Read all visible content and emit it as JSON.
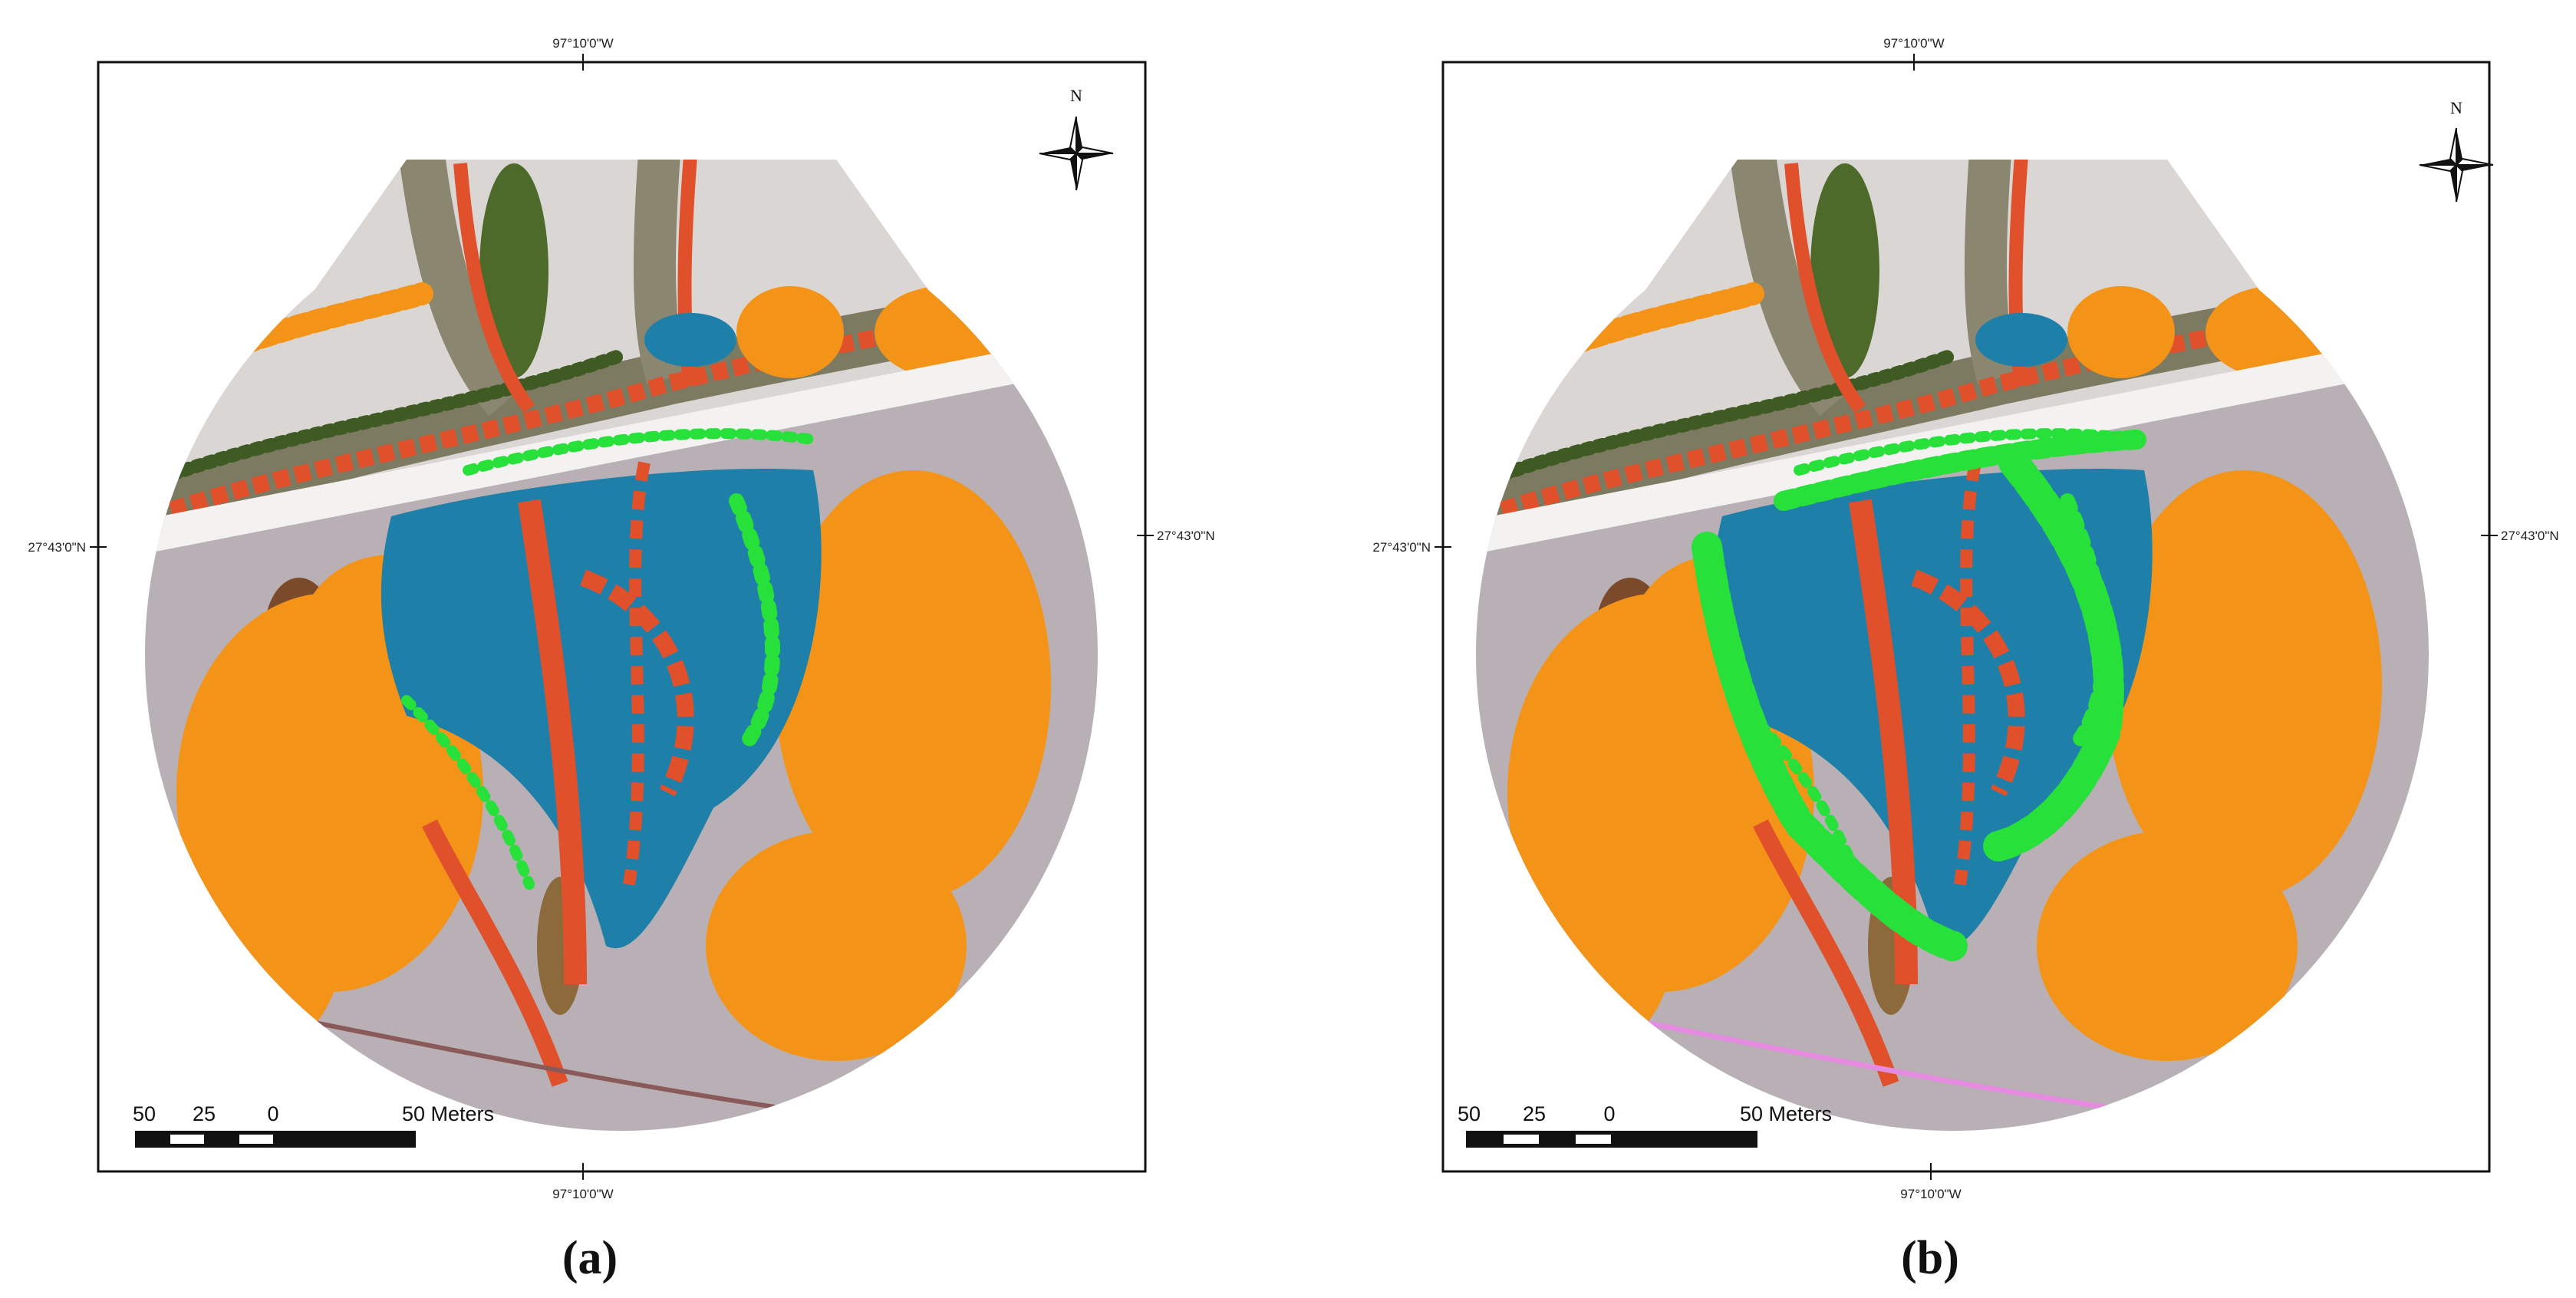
{
  "panels": [
    {
      "label": "(a)",
      "top_coord": "97°10'0\"W",
      "bottom_coord": "97°10'0\"W",
      "left_coord": "27°43'0\"N",
      "right_coord": "27°43'0\"N",
      "north": "N",
      "scale_labels": [
        "50",
        "25",
        "0",
        "50 Meters"
      ]
    },
    {
      "label": "(b)",
      "top_coord": "97°10'0\"W",
      "bottom_coord": "97°10'0\"W",
      "left_coord": "27°43'0\"N",
      "right_coord": "27°43'0\"N",
      "north": "N",
      "scale_labels": [
        "50",
        "25",
        "0",
        "50 Meters"
      ]
    }
  ]
}
